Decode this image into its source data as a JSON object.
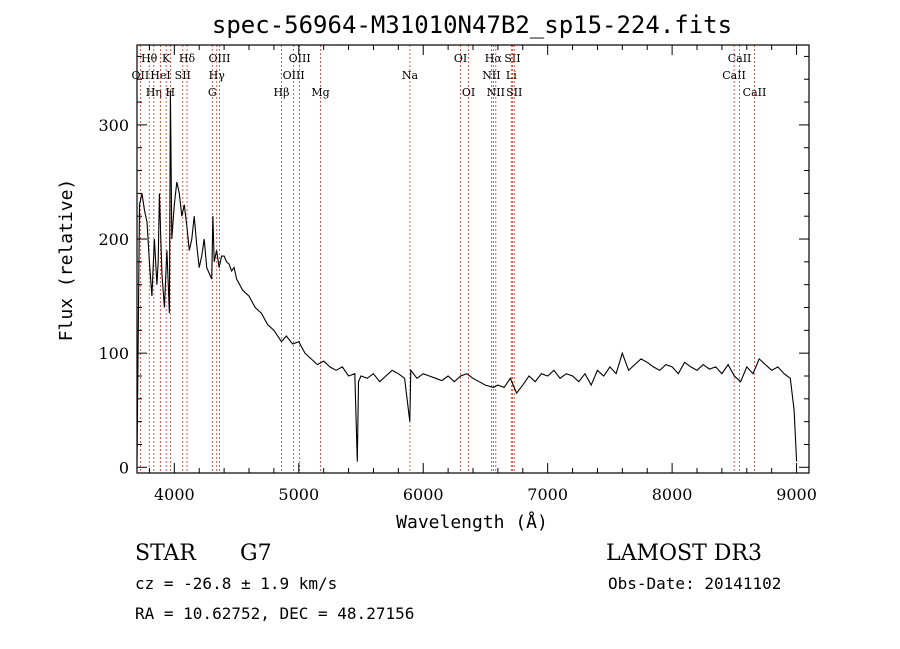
{
  "chart_data": {
    "type": "line",
    "title": "spec-56964-M31010N47B2_sp15-224.fits",
    "xlabel": "Wavelength (Å)",
    "ylabel": "Flux (relative)",
    "xlim": [
      3700,
      9100
    ],
    "ylim": [
      -5,
      370
    ],
    "x_ticks": [
      4000,
      5000,
      6000,
      7000,
      8000,
      9000
    ],
    "y_ticks": [
      0,
      100,
      200,
      300
    ],
    "grid": false,
    "series": [
      {
        "name": "flux",
        "color": "#000000",
        "x": [
          3700,
          3720,
          3740,
          3760,
          3780,
          3800,
          3820,
          3840,
          3860,
          3870,
          3880,
          3900,
          3920,
          3940,
          3960,
          3968,
          3980,
          4000,
          4020,
          4040,
          4060,
          4080,
          4102,
          4120,
          4140,
          4160,
          4180,
          4200,
          4220,
          4240,
          4260,
          4280,
          4300,
          4310,
          4320,
          4340,
          4360,
          4380,
          4400,
          4420,
          4440,
          4460,
          4480,
          4500,
          4550,
          4600,
          4650,
          4700,
          4750,
          4800,
          4861,
          4900,
          4950,
          5000,
          5050,
          5100,
          5150,
          5200,
          5250,
          5300,
          5350,
          5400,
          5450,
          5470,
          5480,
          5500,
          5550,
          5600,
          5650,
          5700,
          5750,
          5800,
          5850,
          5892,
          5900,
          5950,
          6000,
          6050,
          6100,
          6150,
          6200,
          6250,
          6300,
          6350,
          6400,
          6450,
          6500,
          6563,
          6600,
          6650,
          6700,
          6750,
          6800,
          6850,
          6900,
          6950,
          7000,
          7050,
          7100,
          7150,
          7200,
          7250,
          7300,
          7350,
          7400,
          7450,
          7500,
          7550,
          7600,
          7650,
          7700,
          7750,
          7800,
          7850,
          7900,
          7950,
          8000,
          8050,
          8100,
          8150,
          8200,
          8250,
          8300,
          8350,
          8400,
          8450,
          8500,
          8550,
          8600,
          8650,
          8700,
          8750,
          8800,
          8850,
          8900,
          8950,
          8980,
          9000
        ],
        "y": [
          5,
          230,
          240,
          225,
          215,
          180,
          150,
          200,
          160,
          180,
          240,
          170,
          140,
          190,
          135,
          330,
          200,
          230,
          250,
          240,
          220,
          230,
          210,
          190,
          200,
          220,
          195,
          175,
          185,
          200,
          175,
          170,
          165,
          220,
          180,
          190,
          175,
          185,
          185,
          180,
          178,
          172,
          175,
          165,
          155,
          150,
          140,
          135,
          125,
          120,
          110,
          115,
          108,
          110,
          100,
          95,
          90,
          93,
          88,
          85,
          88,
          80,
          82,
          5,
          75,
          80,
          78,
          82,
          75,
          80,
          85,
          82,
          78,
          40,
          85,
          78,
          82,
          80,
          78,
          76,
          80,
          75,
          80,
          82,
          78,
          75,
          72,
          70,
          72,
          70,
          78,
          65,
          72,
          80,
          75,
          82,
          80,
          85,
          78,
          82,
          80,
          75,
          82,
          72,
          85,
          80,
          88,
          82,
          100,
          85,
          90,
          95,
          92,
          88,
          85,
          90,
          88,
          82,
          92,
          88,
          85,
          90,
          86,
          88,
          82,
          90,
          80,
          75,
          88,
          82,
          95,
          90,
          85,
          88,
          82,
          78,
          50,
          5
        ]
      }
    ],
    "line_marks": [
      {
        "label": "OII",
        "wavelength": 3727,
        "row": 2
      },
      {
        "label": "Hθ",
        "wavelength": 3798,
        "row": 1
      },
      {
        "label": "Hη",
        "wavelength": 3835,
        "row": 3
      },
      {
        "label": "HeI",
        "wavelength": 3889,
        "row": 2
      },
      {
        "label": "K",
        "wavelength": 3934,
        "row": 1
      },
      {
        "label": "H",
        "wavelength": 3968,
        "row": 3
      },
      {
        "label": "SII",
        "wavelength": 4068,
        "row": 2
      },
      {
        "label": "Hδ",
        "wavelength": 4102,
        "row": 1
      },
      {
        "label": "G",
        "wavelength": 4305,
        "row": 3
      },
      {
        "label": "Hγ",
        "wavelength": 4341,
        "row": 2
      },
      {
        "label": "OIII",
        "wavelength": 4363,
        "row": 1
      },
      {
        "label": "Hβ",
        "wavelength": 4861,
        "row": 3
      },
      {
        "label": "OIII",
        "wavelength": 4959,
        "row": 2
      },
      {
        "label": "OIII",
        "wavelength": 5007,
        "row": 1
      },
      {
        "label": "Mg",
        "wavelength": 5175,
        "row": 3
      },
      {
        "label": "Na",
        "wavelength": 5893,
        "row": 2
      },
      {
        "label": "OI",
        "wavelength": 6300,
        "row": 1
      },
      {
        "label": "OI",
        "wavelength": 6364,
        "row": 3
      },
      {
        "label": "NII",
        "wavelength": 6548,
        "row": 2
      },
      {
        "label": "Hα",
        "wavelength": 6563,
        "row": 1
      },
      {
        "label": "NII",
        "wavelength": 6583,
        "row": 3
      },
      {
        "label": "Li",
        "wavelength": 6708,
        "row": 2
      },
      {
        "label": "SII",
        "wavelength": 6717,
        "row": 1
      },
      {
        "label": "SII",
        "wavelength": 6731,
        "row": 3
      },
      {
        "label": "CaII",
        "wavelength": 8498,
        "row": 2
      },
      {
        "label": "CaII",
        "wavelength": 8542,
        "row": 1
      },
      {
        "label": "CaII",
        "wavelength": 8662,
        "row": 3
      }
    ]
  },
  "info": {
    "class": "STAR",
    "subclass": "G7",
    "survey": "LAMOST DR3",
    "cz": "cz = -26.8 ± 1.9 km/s",
    "obs_date": "Obs-Date: 20141102",
    "coords": "RA =  10.62752, DEC =  48.27156"
  }
}
